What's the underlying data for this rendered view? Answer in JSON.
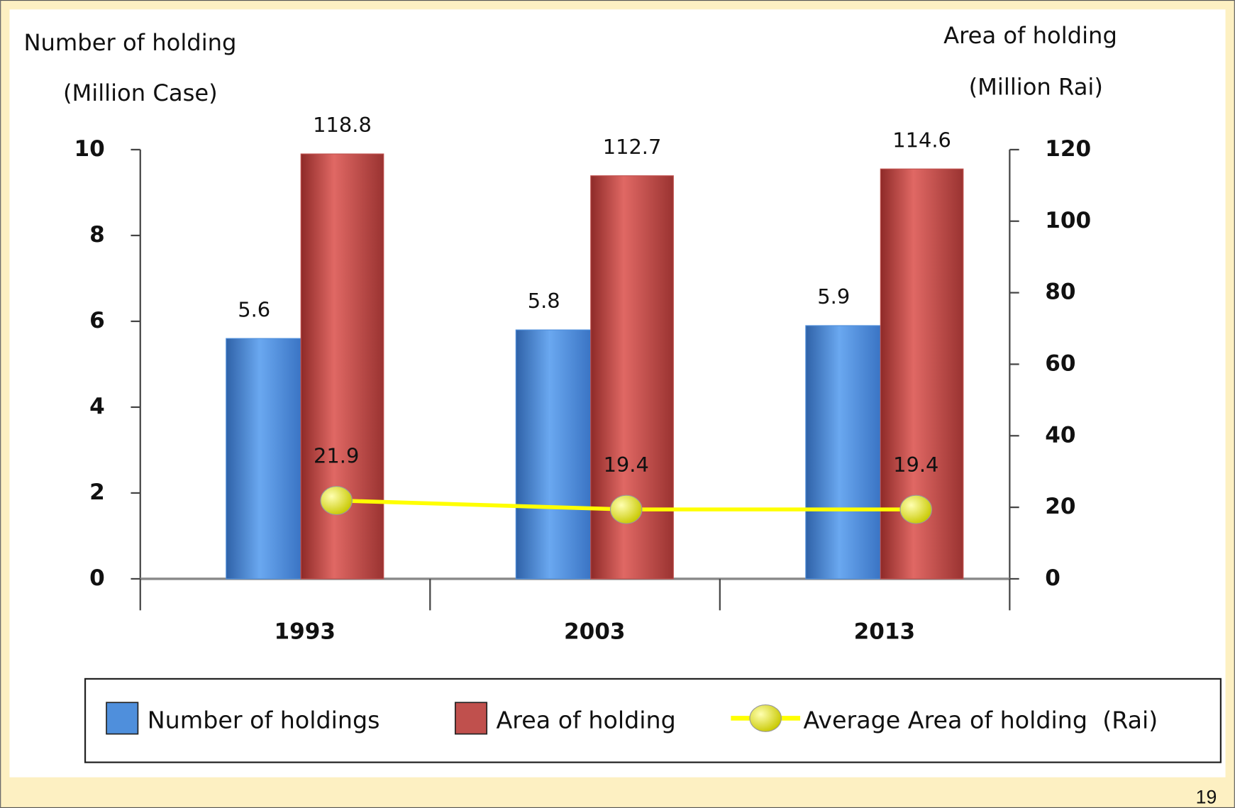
{
  "chart_data": {
    "type": "bar",
    "y_label": [
      "Number of holding",
      "(Million Case)"
    ],
    "y2_label": [
      "Area of holding",
      "(Million Rai)"
    ],
    "categories": [
      "1993",
      "2003",
      "2013"
    ],
    "series": [
      {
        "name": "Number of holdings",
        "color": "#4f8fdc",
        "values": [
          5.6,
          5.8,
          5.9
        ]
      },
      {
        "name": "Area of holding",
        "color": "#c0504d",
        "values": [
          118.8,
          112.7,
          114.6
        ],
        "axis": "y2"
      },
      {
        "name": "Average Area of holding  (Rai)",
        "type": "line",
        "color": "#ffff00",
        "values": [
          21.9,
          19.4,
          19.4
        ],
        "axis": "y2"
      }
    ],
    "ylim": [
      0,
      10
    ],
    "yticks": [
      0,
      2,
      4,
      6,
      8,
      10
    ],
    "y2lim": [
      0,
      120
    ],
    "y2ticks": [
      0,
      20,
      40,
      60,
      80,
      100,
      120
    ],
    "legend": "bottom",
    "page_number": "19"
  }
}
